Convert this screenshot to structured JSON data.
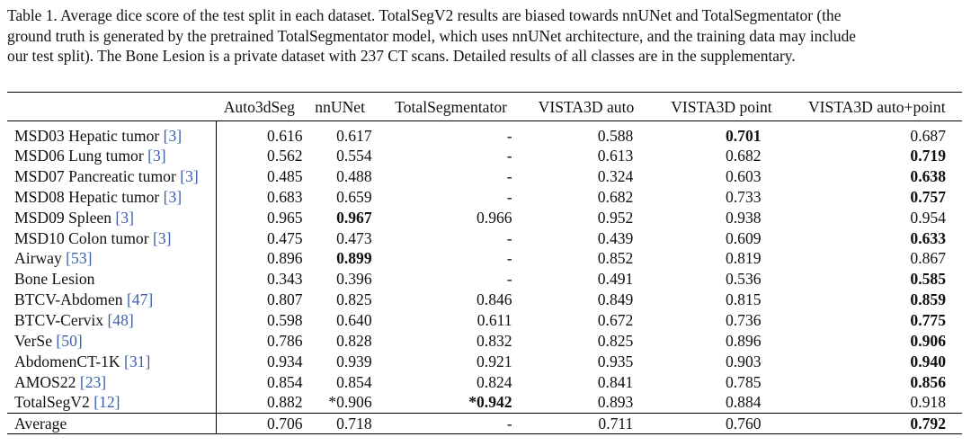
{
  "caption": {
    "lines": [
      "Table 1.  Average dice score of the test split in each dataset.  TotalSegV2 results are biased towards nnUNet and TotalSegmentator (the",
      "ground truth is generated by the pretrained TotalSegmentator model, which uses nnUNet architecture, and the training data may include",
      "our test split). The Bone Lesion is a private dataset with 237 CT scans. Detailed results of all classes are in the supplementary."
    ]
  },
  "table": {
    "headers": [
      "",
      "Auto3dSeg",
      "nnUNet",
      "TotalSegmentator",
      "VISTA3D auto",
      "VISTA3D point",
      "VISTA3D auto+point"
    ],
    "rows": [
      {
        "name": "MSD03 Hepatic tumor ",
        "ref": "[3]",
        "values": [
          "0.616",
          "0.617",
          "-",
          "0.588",
          "0.701",
          "0.687"
        ],
        "bold": [
          false,
          false,
          false,
          false,
          true,
          false
        ]
      },
      {
        "name": "MSD06 Lung tumor ",
        "ref": "[3]",
        "values": [
          "0.562",
          "0.554",
          "-",
          "0.613",
          "0.682",
          "0.719"
        ],
        "bold": [
          false,
          false,
          false,
          false,
          false,
          true
        ]
      },
      {
        "name": "MSD07 Pancreatic tumor ",
        "ref": "[3]",
        "values": [
          "0.485",
          "0.488",
          "-",
          "0.324",
          "0.603",
          "0.638"
        ],
        "bold": [
          false,
          false,
          false,
          false,
          false,
          true
        ]
      },
      {
        "name": "MSD08 Hepatic tumor ",
        "ref": "[3]",
        "values": [
          "0.683",
          "0.659",
          "-",
          "0.682",
          "0.733",
          "0.757"
        ],
        "bold": [
          false,
          false,
          false,
          false,
          false,
          true
        ]
      },
      {
        "name": "MSD09 Spleen ",
        "ref": "[3]",
        "values": [
          "0.965",
          "0.967",
          "0.966",
          "0.952",
          "0.938",
          "0.954"
        ],
        "bold": [
          false,
          true,
          false,
          false,
          false,
          false
        ]
      },
      {
        "name": "MSD10 Colon tumor ",
        "ref": "[3]",
        "values": [
          "0.475",
          "0.473",
          "-",
          "0.439",
          "0.609",
          "0.633"
        ],
        "bold": [
          false,
          false,
          false,
          false,
          false,
          true
        ]
      },
      {
        "name": "Airway ",
        "ref": "[53]",
        "values": [
          "0.896",
          "0.899",
          "-",
          "0.852",
          "0.819",
          "0.867"
        ],
        "bold": [
          false,
          true,
          false,
          false,
          false,
          false
        ]
      },
      {
        "name": "Bone Lesion",
        "ref": "",
        "values": [
          "0.343",
          "0.396",
          "-",
          "0.491",
          "0.536",
          "0.585"
        ],
        "bold": [
          false,
          false,
          false,
          false,
          false,
          true
        ]
      },
      {
        "name": "BTCV-Abdomen ",
        "ref": "[47]",
        "values": [
          "0.807",
          "0.825",
          "0.846",
          "0.849",
          "0.815",
          "0.859"
        ],
        "bold": [
          false,
          false,
          false,
          false,
          false,
          true
        ]
      },
      {
        "name": "BTCV-Cervix ",
        "ref": "[48]",
        "values": [
          "0.598",
          "0.640",
          "0.611",
          "0.672",
          "0.736",
          "0.775"
        ],
        "bold": [
          false,
          false,
          false,
          false,
          false,
          true
        ]
      },
      {
        "name": "VerSe ",
        "ref": "[50]",
        "values": [
          "0.786",
          "0.828",
          "0.832",
          "0.825",
          "0.896",
          "0.906"
        ],
        "bold": [
          false,
          false,
          false,
          false,
          false,
          true
        ]
      },
      {
        "name": "AbdomenCT-1K ",
        "ref": "[31]",
        "values": [
          "0.934",
          "0.939",
          "0.921",
          "0.935",
          "0.903",
          "0.940"
        ],
        "bold": [
          false,
          false,
          false,
          false,
          false,
          true
        ]
      },
      {
        "name": "AMOS22 ",
        "ref": "[23]",
        "values": [
          "0.854",
          "0.854",
          "0.824",
          "0.841",
          "0.785",
          "0.856"
        ],
        "bold": [
          false,
          false,
          false,
          false,
          false,
          true
        ]
      },
      {
        "name": "TotalSegV2 ",
        "ref": "[12]",
        "values": [
          "0.882",
          "*0.906",
          "*0.942",
          "0.893",
          "0.884",
          "0.918"
        ],
        "bold": [
          false,
          false,
          true,
          false,
          false,
          false
        ]
      }
    ],
    "average": {
      "name": "Average",
      "values": [
        "0.706",
        "0.718",
        "-",
        "0.711",
        "0.760",
        "0.792"
      ],
      "bold": [
        false,
        false,
        false,
        false,
        false,
        true
      ]
    }
  }
}
